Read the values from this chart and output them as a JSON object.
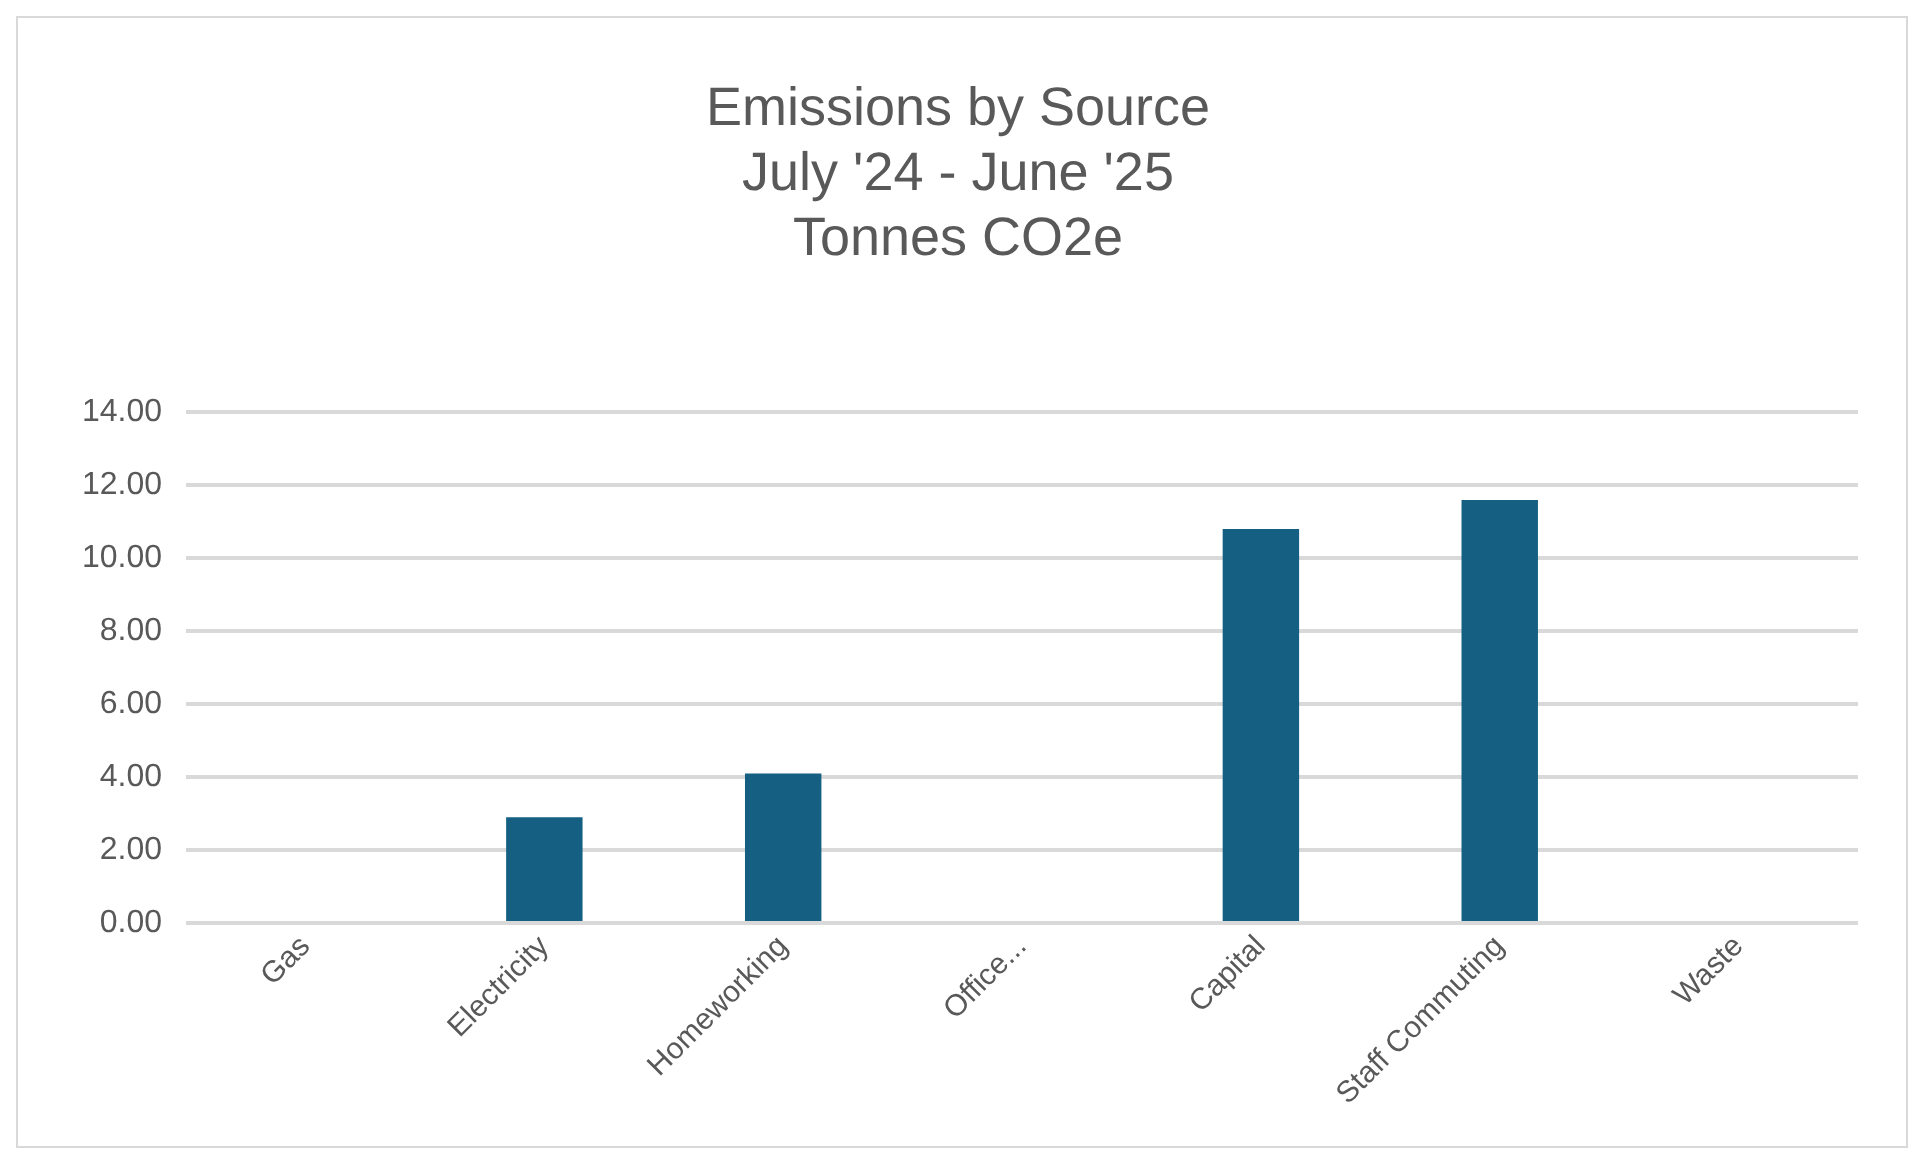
{
  "chart_data": {
    "type": "bar",
    "title": [
      "Emissions by Source",
      "July '24 - June '25",
      "Tonnes CO2e"
    ],
    "categories": [
      "Gas",
      "Electricity",
      "Homeworking",
      "Office...",
      "Capital",
      "Staff Commuting",
      "Waste"
    ],
    "values": [
      0,
      2.9,
      4.1,
      0,
      10.8,
      11.6,
      0
    ],
    "color": "#156082",
    "ylim": [
      0,
      14
    ],
    "yticks": [
      {
        "value": 0,
        "label": "0.00"
      },
      {
        "value": 2,
        "label": "2.00"
      },
      {
        "value": 4,
        "label": "4.00"
      },
      {
        "value": 6,
        "label": "6.00"
      },
      {
        "value": 8,
        "label": "8.00"
      },
      {
        "value": 10,
        "label": "10.00"
      },
      {
        "value": 12,
        "label": "12.00"
      },
      {
        "value": 14,
        "label": "14.00"
      }
    ],
    "grid": "y",
    "legend": false
  }
}
